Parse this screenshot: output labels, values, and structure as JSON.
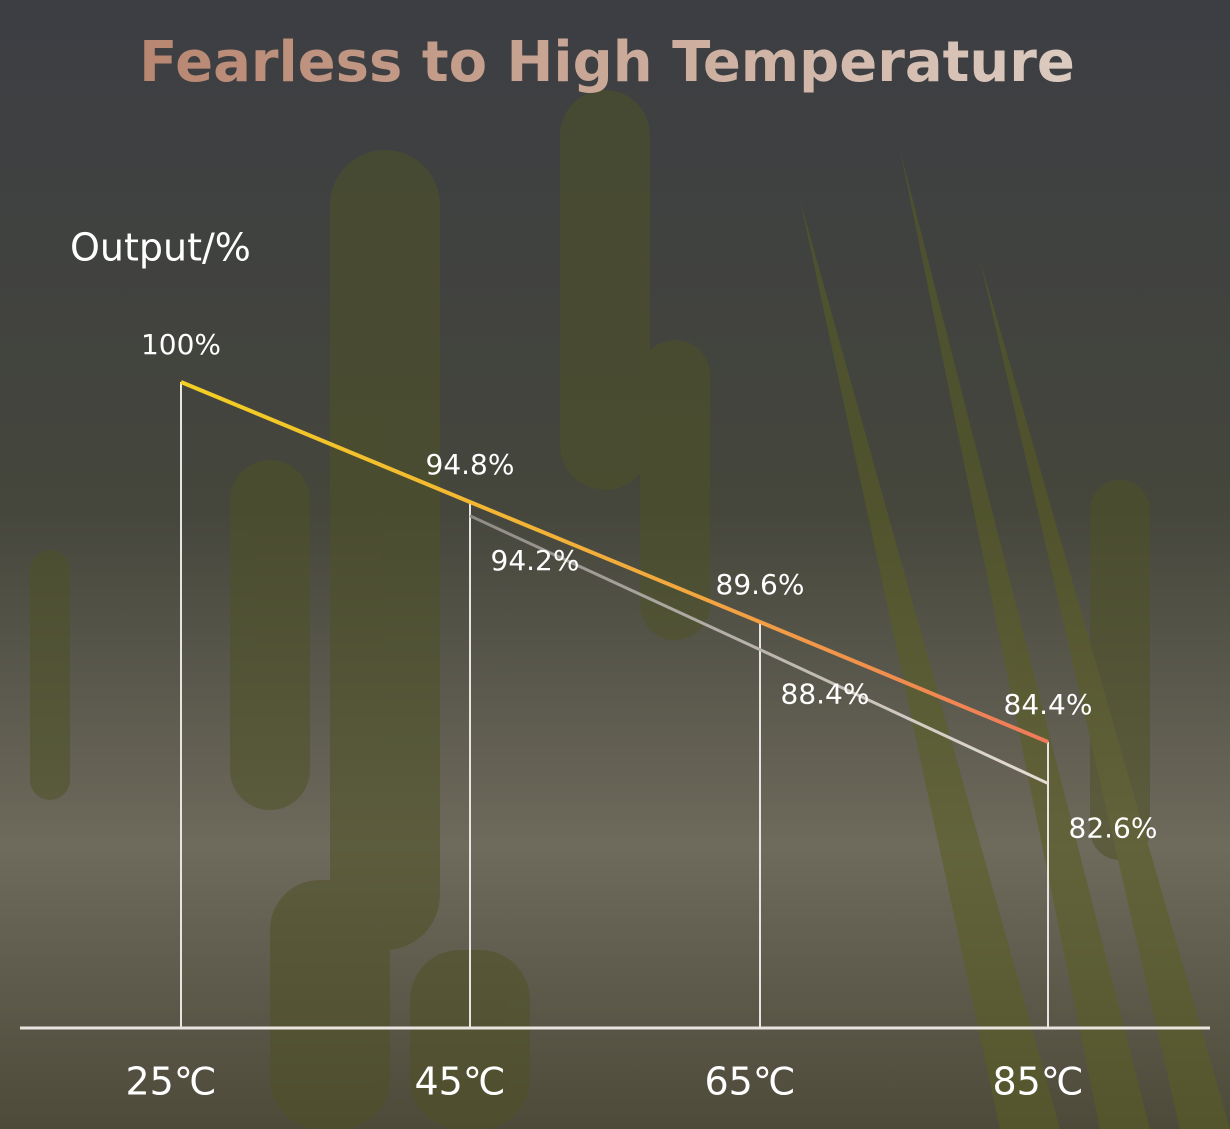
{
  "chart_data": {
    "type": "line",
    "title": "Fearless to High Temperature",
    "y_label": "Output/%",
    "categories": [
      "25℃",
      "45℃",
      "65℃",
      "85℃"
    ],
    "series": [
      {
        "color": "#f2c62a",
        "values": [
          100,
          94.8,
          89.6,
          84.4
        ],
        "value_labels": [
          "100%",
          "94.8%",
          "89.6%",
          "84.4%"
        ]
      },
      {
        "color": "#c9c2ba",
        "values": [
          null,
          94.2,
          88.4,
          82.6
        ],
        "value_labels": [
          null,
          "94.2%",
          "88.4%",
          "82.6%"
        ]
      }
    ],
    "ylim": [
      72,
      100
    ]
  }
}
